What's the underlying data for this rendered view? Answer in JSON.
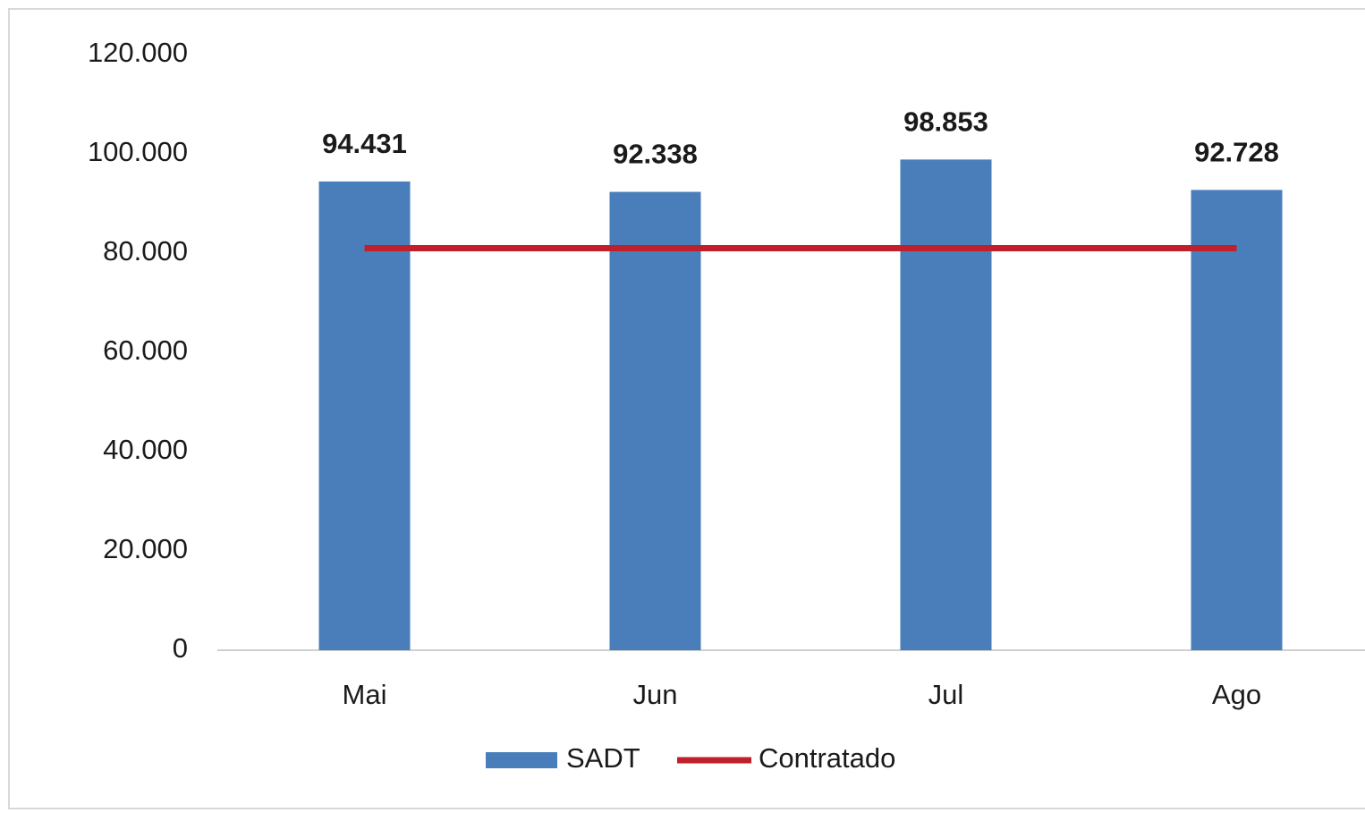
{
  "chart_data": {
    "type": "bar",
    "categories": [
      "Mai",
      "Jun",
      "Jul",
      "Ago"
    ],
    "series": [
      {
        "name": "SADT",
        "type": "bar",
        "color": "#4a7ebb",
        "values": [
          94431,
          92338,
          98853,
          92728
        ],
        "value_labels": [
          "94.431",
          "92.338",
          "98.853",
          "92.728"
        ]
      },
      {
        "name": "Contratado",
        "type": "line",
        "color": "#c0202a",
        "values": [
          81000,
          81000,
          81000,
          81000
        ]
      }
    ],
    "ylim": [
      0,
      120000
    ],
    "yticks": [
      0,
      {
        "value": 20000,
        "label": "20.000"
      },
      {
        "value": 40000,
        "label": "40.000"
      },
      {
        "value": 60000,
        "label": "60.000"
      },
      {
        "value": 80000,
        "label": "80.000"
      },
      {
        "value": 100000,
        "label": "100.000"
      },
      {
        "value": 120000,
        "label": "120.000"
      }
    ],
    "grid": false,
    "legend": "bottom"
  }
}
